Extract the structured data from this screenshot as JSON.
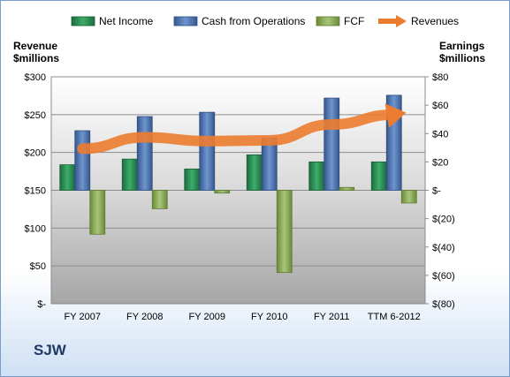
{
  "company": "SJW",
  "chart_data": {
    "type": "bar",
    "categories": [
      "FY 2007",
      "FY 2008",
      "FY 2009",
      "FY 2010",
      "FY 2011",
      "TTM 6-2012"
    ],
    "left_axis": {
      "title": "Revenue\n$millions",
      "range": [
        0,
        300
      ],
      "ticks": [
        0,
        50,
        100,
        150,
        200,
        250,
        300
      ],
      "tick_labels": [
        "$-",
        "$50",
        "$100",
        "$150",
        "$200",
        "$250",
        "$300"
      ]
    },
    "right_axis": {
      "title": "Earnings\n$millions",
      "range": [
        -80,
        80
      ],
      "ticks": [
        -80,
        -60,
        -40,
        -20,
        0,
        20,
        40,
        60,
        80
      ],
      "tick_labels": [
        "$(80)",
        "$(60)",
        "$(40)",
        "$(20)",
        "$-",
        "$20",
        "$40",
        "$60",
        "$80"
      ]
    },
    "series": [
      {
        "name": "Net Income",
        "type": "bar",
        "axis": "right",
        "color": "#2e8b57",
        "values": [
          18,
          22,
          15,
          25,
          20,
          20
        ]
      },
      {
        "name": "Cash from Operations",
        "type": "bar",
        "axis": "right",
        "color": "#4f78b4",
        "values": [
          42,
          52,
          55,
          37,
          65,
          67
        ]
      },
      {
        "name": "FCF",
        "type": "bar",
        "axis": "right",
        "color": "#8fb05a",
        "values": [
          -31,
          -13,
          -2,
          -58,
          2,
          -9
        ]
      },
      {
        "name": "Revenues",
        "type": "line",
        "axis": "left",
        "color": "#ec7c30",
        "values": [
          205,
          220,
          215,
          216,
          237,
          250
        ]
      }
    ],
    "grid": true,
    "legend": "top"
  }
}
